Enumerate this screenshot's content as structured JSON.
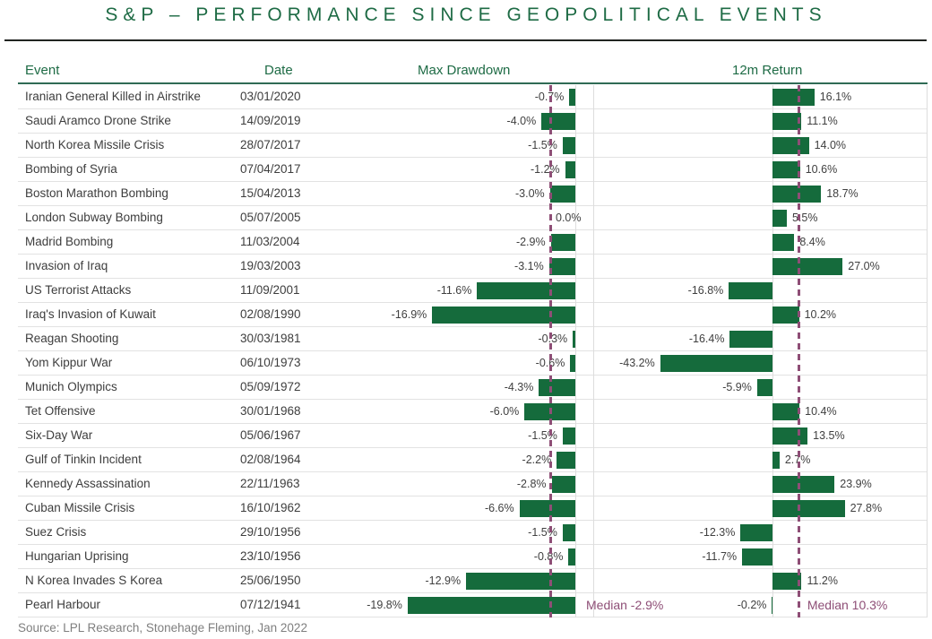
{
  "title": "S&P – PERFORMANCE SINCE GEOPOLITICAL EVENTS",
  "headers": {
    "event": "Event",
    "date": "Date",
    "drawdown": "Max Drawdown",
    "return12m": "12m Return"
  },
  "source": "Source: LPL Research, Stonehage Fleming, Jan 2022",
  "colors": {
    "bar_green": "#156B3C",
    "heading_green": "#1E6B45",
    "median_purple": "#8E4E76",
    "value_text": "#404040",
    "row_line": "#E2E2E2",
    "source_gray": "#7F7F7F"
  },
  "chart_data": {
    "type": "bar",
    "orientation": "horizontal",
    "title": "S&P – PERFORMANCE SINCE GEOPOLITICAL EVENTS",
    "columns": [
      "Event",
      "Date",
      "Max Drawdown",
      "12m Return"
    ],
    "legend_position": "none",
    "grid": "vertical-axis-lines-only",
    "drawdown_axis_range": [
      -25,
      2
    ],
    "return_axis_range": [
      -66,
      58
    ],
    "rows": [
      {
        "event": "Iranian General Killed in Airstrike",
        "date": "03/01/2020",
        "max_drawdown": -0.7,
        "max_drawdown_label": "-0.7%",
        "return_12m": 16.1,
        "return_12m_label": "16.1%"
      },
      {
        "event": "Saudi Aramco Drone Strike",
        "date": "14/09/2019",
        "max_drawdown": -4.0,
        "max_drawdown_label": "-4.0%",
        "return_12m": 11.1,
        "return_12m_label": "11.1%"
      },
      {
        "event": "North Korea Missile Crisis",
        "date": "28/07/2017",
        "max_drawdown": -1.5,
        "max_drawdown_label": "-1.5%",
        "return_12m": 14.0,
        "return_12m_label": "14.0%"
      },
      {
        "event": "Bombing of Syria",
        "date": "07/04/2017",
        "max_drawdown": -1.2,
        "max_drawdown_label": "-1.2%",
        "return_12m": 10.6,
        "return_12m_label": "10.6%"
      },
      {
        "event": "Boston Marathon Bombing",
        "date": "15/04/2013",
        "max_drawdown": -3.0,
        "max_drawdown_label": "-3.0%",
        "return_12m": 18.7,
        "return_12m_label": "18.7%"
      },
      {
        "event": "London Subway Bombing",
        "date": "05/07/2005",
        "max_drawdown": 0.0,
        "max_drawdown_label": "0.0%",
        "return_12m": 5.5,
        "return_12m_label": "5.5%"
      },
      {
        "event": "Madrid Bombing",
        "date": "11/03/2004",
        "max_drawdown": -2.9,
        "max_drawdown_label": "-2.9%",
        "return_12m": 8.4,
        "return_12m_label": "8.4%"
      },
      {
        "event": "Invasion of Iraq",
        "date": "19/03/2003",
        "max_drawdown": -3.1,
        "max_drawdown_label": "-3.1%",
        "return_12m": 27.0,
        "return_12m_label": "27.0%"
      },
      {
        "event": "US Terrorist Attacks",
        "date": "11/09/2001",
        "max_drawdown": -11.6,
        "max_drawdown_label": "-11.6%",
        "return_12m": -16.8,
        "return_12m_label": "-16.8%"
      },
      {
        "event": "Iraq's Invasion of Kuwait",
        "date": "02/08/1990",
        "max_drawdown": -16.9,
        "max_drawdown_label": "-16.9%",
        "return_12m": 10.2,
        "return_12m_label": "10.2%"
      },
      {
        "event": "Reagan Shooting",
        "date": "30/03/1981",
        "max_drawdown": -0.3,
        "max_drawdown_label": "-0.3%",
        "return_12m": -16.4,
        "return_12m_label": "-16.4%"
      },
      {
        "event": "Yom Kippur War",
        "date": "06/10/1973",
        "max_drawdown": -0.6,
        "max_drawdown_label": "-0.6%",
        "return_12m": -43.2,
        "return_12m_label": "-43.2%"
      },
      {
        "event": "Munich Olympics",
        "date": "05/09/1972",
        "max_drawdown": -4.3,
        "max_drawdown_label": "-4.3%",
        "return_12m": -5.9,
        "return_12m_label": "-5.9%"
      },
      {
        "event": "Tet Offensive",
        "date": "30/01/1968",
        "max_drawdown": -6.0,
        "max_drawdown_label": "-6.0%",
        "return_12m": 10.4,
        "return_12m_label": "10.4%"
      },
      {
        "event": "Six-Day War",
        "date": "05/06/1967",
        "max_drawdown": -1.5,
        "max_drawdown_label": "-1.5%",
        "return_12m": 13.5,
        "return_12m_label": "13.5%"
      },
      {
        "event": "Gulf of Tinkin Incident",
        "date": "02/08/1964",
        "max_drawdown": -2.2,
        "max_drawdown_label": "-2.2%",
        "return_12m": 2.7,
        "return_12m_label": "2.7%"
      },
      {
        "event": "Kennedy Assassination",
        "date": "22/11/1963",
        "max_drawdown": -2.8,
        "max_drawdown_label": "-2.8%",
        "return_12m": 23.9,
        "return_12m_label": "23.9%"
      },
      {
        "event": "Cuban Missile Crisis",
        "date": "16/10/1962",
        "max_drawdown": -6.6,
        "max_drawdown_label": "-6.6%",
        "return_12m": 27.8,
        "return_12m_label": "27.8%"
      },
      {
        "event": "Suez Crisis",
        "date": "29/10/1956",
        "max_drawdown": -1.5,
        "max_drawdown_label": "-1.5%",
        "return_12m": -12.3,
        "return_12m_label": "-12.3%"
      },
      {
        "event": "Hungarian Uprising",
        "date": "23/10/1956",
        "max_drawdown": -0.8,
        "max_drawdown_label": "-0.8%",
        "return_12m": -11.7,
        "return_12m_label": "-11.7%"
      },
      {
        "event": "N Korea Invades S Korea",
        "date": "25/06/1950",
        "max_drawdown": -12.9,
        "max_drawdown_label": "-12.9%",
        "return_12m": 11.2,
        "return_12m_label": "11.2%"
      },
      {
        "event": "Pearl Harbour",
        "date": "07/12/1941",
        "max_drawdown": -19.8,
        "max_drawdown_label": "-19.8%",
        "return_12m": -0.2,
        "return_12m_label": "-0.2%"
      }
    ],
    "medians": {
      "max_drawdown": -2.9,
      "max_drawdown_label": "Median -2.9%",
      "return_12m": 10.3,
      "return_12m_label": "Median 10.3%"
    }
  }
}
